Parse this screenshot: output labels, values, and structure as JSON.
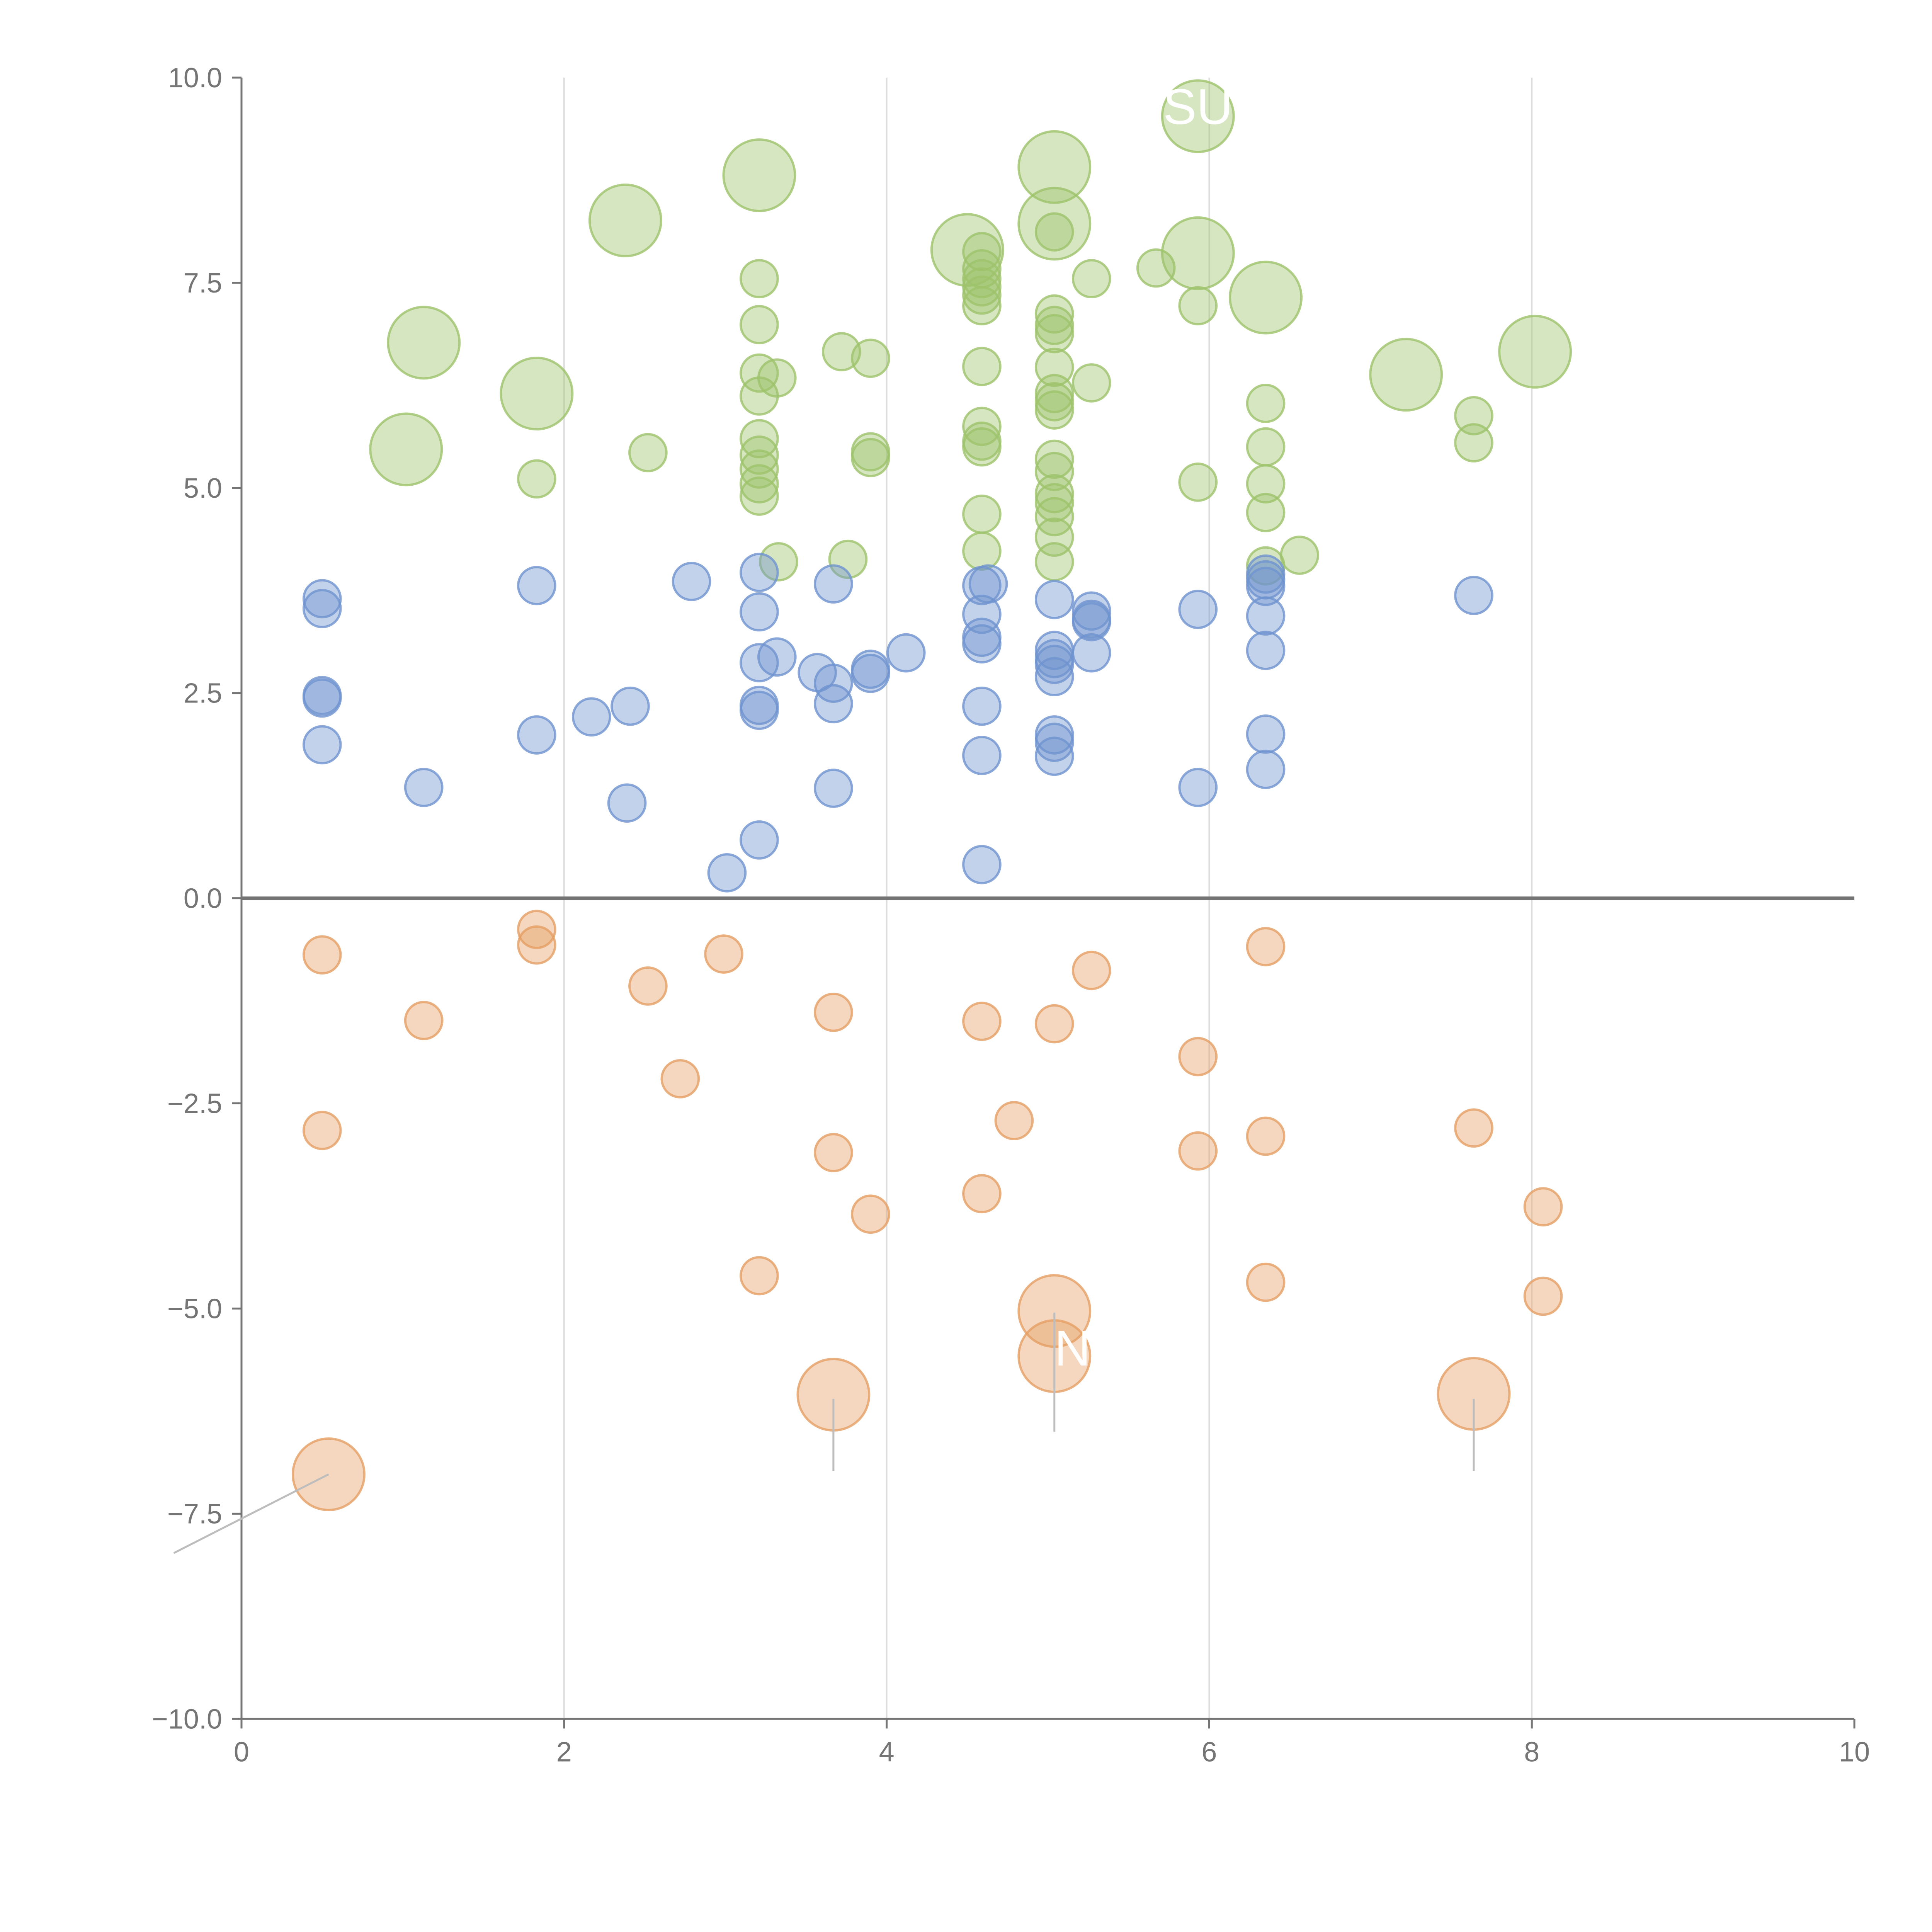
{
  "chart_data": {
    "type": "scatter",
    "title": "",
    "xlabel": "",
    "ylabel": "",
    "xlim": [
      0,
      10
    ],
    "ylim": [
      -10,
      10
    ],
    "x_ticks": [
      0,
      2,
      4,
      6,
      8,
      10
    ],
    "x_tick_labels": [
      "0",
      "2",
      "4",
      "6",
      "8",
      "10"
    ],
    "y_ticks": [
      10,
      7.5,
      5,
      2.5,
      0,
      -2.5,
      -5,
      -7.5,
      -10
    ],
    "y_tick_labels": [
      "10.0",
      "7.5",
      "5.0",
      "2.5",
      "0.0",
      "−2.5",
      "−5.0",
      "−7.5",
      "−10.0"
    ],
    "vertical_grid": true,
    "horizontal_grid": false,
    "zero_line": true,
    "legend": "none",
    "colors": {
      "green": "#9dc36b",
      "blue": "#6f93cf",
      "orange": "#e59f64",
      "axis": "#757575",
      "grid": "#dddddd",
      "zero_line": "#757575",
      "leader": "#bdbdbd"
    },
    "series": [
      {
        "color": "green",
        "points": [
          [
            1.13,
            6.77,
            2
          ],
          [
            1.02,
            5.47,
            2
          ],
          [
            1.83,
            6.15,
            2
          ],
          [
            2.38,
            8.26,
            2
          ],
          [
            3.21,
            8.81,
            2
          ],
          [
            4.5,
            7.9,
            2
          ],
          [
            5.04,
            8.91,
            2
          ],
          [
            5.04,
            8.22,
            2
          ],
          [
            5.93,
            9.53,
            2
          ],
          [
            5.93,
            7.86,
            2
          ],
          [
            6.35,
            7.32,
            2
          ],
          [
            7.22,
            6.38,
            2
          ],
          [
            8.02,
            6.66,
            2
          ],
          [
            1.83,
            5.11,
            1
          ],
          [
            2.52,
            5.43,
            1
          ],
          [
            3.21,
            7.55,
            1
          ],
          [
            3.21,
            6.99,
            1
          ],
          [
            3.21,
            6.4,
            1
          ],
          [
            3.21,
            6.12,
            1
          ],
          [
            3.32,
            6.34,
            1
          ],
          [
            3.21,
            5.6,
            1
          ],
          [
            3.21,
            5.4,
            1
          ],
          [
            3.21,
            5.23,
            1
          ],
          [
            3.21,
            5.05,
            1
          ],
          [
            3.21,
            4.9,
            1
          ],
          [
            3.33,
            4.1,
            1
          ],
          [
            3.72,
            6.66,
            1
          ],
          [
            3.9,
            6.58,
            1
          ],
          [
            3.9,
            5.44,
            1
          ],
          [
            3.9,
            5.37,
            1
          ],
          [
            3.76,
            4.13,
            1
          ],
          [
            4.59,
            7.88,
            1
          ],
          [
            4.59,
            7.67,
            1
          ],
          [
            4.59,
            7.55,
            1
          ],
          [
            4.59,
            7.45,
            1
          ],
          [
            4.59,
            7.35,
            1
          ],
          [
            4.59,
            7.22,
            1
          ],
          [
            4.59,
            6.48,
            1
          ],
          [
            4.59,
            5.75,
            1
          ],
          [
            4.59,
            5.57,
            1
          ],
          [
            4.59,
            5.5,
            1
          ],
          [
            4.59,
            4.68,
            1
          ],
          [
            4.59,
            4.23,
            1
          ],
          [
            5.04,
            8.12,
            1
          ],
          [
            5.04,
            7.12,
            1
          ],
          [
            5.04,
            6.98,
            1
          ],
          [
            5.04,
            6.88,
            1
          ],
          [
            5.04,
            6.47,
            1
          ],
          [
            5.04,
            6.15,
            1
          ],
          [
            5.04,
            6.05,
            1
          ],
          [
            5.04,
            5.95,
            1
          ],
          [
            5.04,
            5.35,
            1
          ],
          [
            5.04,
            5.2,
            1
          ],
          [
            5.04,
            4.93,
            1
          ],
          [
            5.04,
            4.82,
            1
          ],
          [
            5.04,
            4.65,
            1
          ],
          [
            5.04,
            4.4,
            1
          ],
          [
            5.04,
            4.1,
            1
          ],
          [
            5.27,
            7.55,
            1
          ],
          [
            5.27,
            6.28,
            1
          ],
          [
            5.67,
            7.68,
            1
          ],
          [
            5.93,
            7.22,
            1
          ],
          [
            5.93,
            5.07,
            1
          ],
          [
            6.35,
            6.03,
            1
          ],
          [
            6.35,
            5.5,
            1
          ],
          [
            6.35,
            5.05,
            1
          ],
          [
            6.35,
            4.7,
            1
          ],
          [
            6.35,
            4.05,
            1
          ],
          [
            6.56,
            4.18,
            1
          ],
          [
            7.64,
            5.88,
            1
          ],
          [
            7.64,
            5.55,
            1
          ]
        ]
      },
      {
        "color": "blue",
        "points": [
          [
            0.5,
            3.65,
            1
          ],
          [
            0.5,
            3.53,
            1
          ],
          [
            0.5,
            2.47,
            1
          ],
          [
            0.5,
            2.44,
            1
          ],
          [
            0.5,
            1.87,
            1
          ],
          [
            1.13,
            1.35,
            1
          ],
          [
            1.83,
            3.81,
            1
          ],
          [
            1.83,
            1.99,
            1
          ],
          [
            2.17,
            2.21,
            1
          ],
          [
            2.41,
            2.34,
            1
          ],
          [
            2.39,
            1.16,
            1
          ],
          [
            2.79,
            3.86,
            1
          ],
          [
            3.01,
            0.31,
            1
          ],
          [
            3.21,
            3.97,
            1
          ],
          [
            3.21,
            3.49,
            1
          ],
          [
            3.21,
            2.87,
            1
          ],
          [
            3.32,
            2.94,
            1
          ],
          [
            3.21,
            2.35,
            1
          ],
          [
            3.21,
            2.29,
            1
          ],
          [
            3.21,
            0.71,
            1
          ],
          [
            3.57,
            2.75,
            1
          ],
          [
            3.67,
            3.83,
            1
          ],
          [
            3.67,
            2.62,
            1
          ],
          [
            3.67,
            2.37,
            1
          ],
          [
            3.67,
            1.34,
            1
          ],
          [
            3.9,
            2.79,
            1
          ],
          [
            3.9,
            2.74,
            1
          ],
          [
            4.12,
            2.99,
            1
          ],
          [
            4.59,
            3.81,
            1
          ],
          [
            4.63,
            3.83,
            1
          ],
          [
            4.59,
            3.46,
            1
          ],
          [
            4.59,
            3.18,
            1
          ],
          [
            4.59,
            3.1,
            1
          ],
          [
            4.59,
            2.34,
            1
          ],
          [
            4.59,
            1.74,
            1
          ],
          [
            4.59,
            0.41,
            1
          ],
          [
            5.04,
            3.64,
            1
          ],
          [
            5.04,
            3.02,
            1
          ],
          [
            5.04,
            2.92,
            1
          ],
          [
            5.04,
            2.85,
            1
          ],
          [
            5.04,
            2.7,
            1
          ],
          [
            5.04,
            1.99,
            1
          ],
          [
            5.04,
            1.9,
            1
          ],
          [
            5.04,
            1.73,
            1
          ],
          [
            5.27,
            3.5,
            1
          ],
          [
            5.27,
            3.4,
            1
          ],
          [
            5.27,
            3.37,
            1
          ],
          [
            5.27,
            2.99,
            1
          ],
          [
            5.93,
            3.52,
            1
          ],
          [
            5.93,
            1.35,
            1
          ],
          [
            6.35,
            3.95,
            1
          ],
          [
            6.35,
            3.88,
            1
          ],
          [
            6.35,
            3.8,
            1
          ],
          [
            6.35,
            3.44,
            1
          ],
          [
            6.35,
            3.02,
            1
          ],
          [
            6.35,
            2.0,
            1
          ],
          [
            6.35,
            1.57,
            1
          ],
          [
            7.64,
            3.69,
            1
          ]
        ]
      },
      {
        "color": "orange",
        "points": [
          [
            0.5,
            -0.69,
            1
          ],
          [
            0.5,
            -2.83,
            1
          ],
          [
            1.13,
            -1.49,
            1
          ],
          [
            1.83,
            -0.38,
            1
          ],
          [
            1.83,
            -0.57,
            1
          ],
          [
            2.52,
            -1.07,
            1
          ],
          [
            2.72,
            -2.2,
            1
          ],
          [
            2.99,
            -0.68,
            1
          ],
          [
            3.21,
            -4.6,
            1
          ],
          [
            3.67,
            -1.39,
            1
          ],
          [
            3.67,
            -3.1,
            1
          ],
          [
            3.9,
            -3.85,
            1
          ],
          [
            4.59,
            -1.5,
            1
          ],
          [
            4.59,
            -3.6,
            1
          ],
          [
            4.79,
            -2.71,
            1
          ],
          [
            5.04,
            -1.53,
            1
          ],
          [
            5.27,
            -0.88,
            1
          ],
          [
            5.93,
            -1.93,
            1
          ],
          [
            5.93,
            -3.08,
            1
          ],
          [
            6.35,
            -0.59,
            1
          ],
          [
            6.35,
            -2.9,
            1
          ],
          [
            6.35,
            -4.68,
            1
          ],
          [
            7.64,
            -2.8,
            1
          ],
          [
            8.07,
            -3.76,
            1
          ],
          [
            8.07,
            -4.85,
            1
          ],
          [
            0.54,
            -7.02,
            2
          ],
          [
            3.67,
            -6.05,
            2
          ],
          [
            5.04,
            -5.03,
            2
          ],
          [
            5.04,
            -5.58,
            2
          ],
          [
            7.64,
            -6.04,
            2
          ]
        ]
      }
    ],
    "annotations": [
      {
        "text": "SU",
        "x": 5.93,
        "y": 9.53
      },
      {
        "text": "N",
        "x": 5.04,
        "y": -5.6
      }
    ],
    "leader_lines": [
      {
        "from": [
          0.54,
          -7.02
        ],
        "to": [
          -0.42,
          -7.98
        ]
      },
      {
        "from": [
          3.67,
          -6.1
        ],
        "to": [
          3.67,
          -6.98
        ]
      },
      {
        "from": [
          5.04,
          -5.05
        ],
        "to": [
          5.04,
          -6.5
        ]
      },
      {
        "from": [
          7.64,
          -6.1
        ],
        "to": [
          7.64,
          -6.98
        ]
      }
    ]
  }
}
